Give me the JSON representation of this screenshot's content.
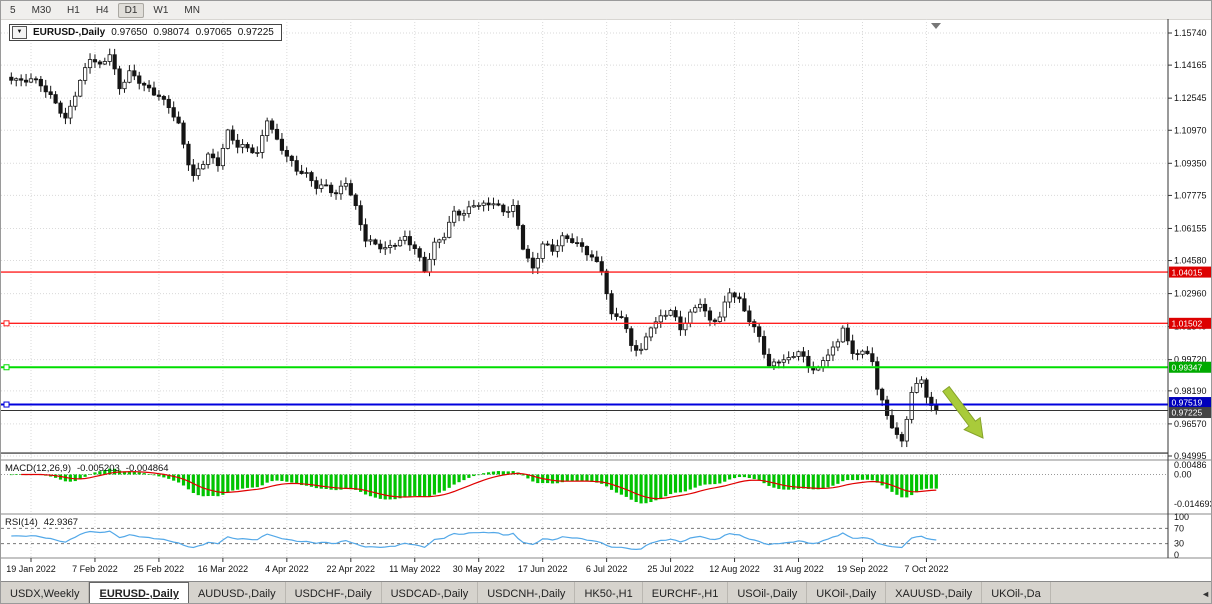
{
  "icons": {
    "symbol_dropdown": "▼",
    "tab_scroll_left": "◄",
    "shift_marker": "triangle-down"
  },
  "toolbar": {
    "active": "D1",
    "buttons": [
      {
        "label": "5"
      },
      {
        "label": "M30"
      },
      {
        "label": "H1"
      },
      {
        "label": "H4"
      },
      {
        "label": "D1"
      },
      {
        "label": "W1"
      },
      {
        "label": "MN"
      }
    ]
  },
  "chart_header": {
    "symbol": "EURUSD-,Daily",
    "open": "0.97650",
    "high": "0.98074",
    "low": "0.97065",
    "close": "0.97225"
  },
  "indicators": {
    "macd": {
      "title": "MACD(12,26,9)",
      "value_main": "-0.005203",
      "value_signal": "-0.004864",
      "axis_labels": [
        "0.00486",
        "0.00",
        "-0.014693"
      ],
      "histogram_color": "#00C400",
      "signal_color": "#E00000"
    },
    "rsi": {
      "title": "RSI(14)",
      "value": "42.9367",
      "axis_labels": [
        "100",
        "70",
        "30",
        "0"
      ],
      "levels": [
        70,
        30
      ],
      "line_color": "#53A8E8"
    }
  },
  "chart_data": {
    "type": "candlestick",
    "symbol": "EURUSD-",
    "timeframe": "Daily",
    "title": "EURUSD-,Daily",
    "visible_range": {
      "price_top": 1.1574,
      "price_bottom": 0.94995
    },
    "y_ticks": [
      "1.15740",
      "1.14165",
      "1.12545",
      "1.10970",
      "1.09350",
      "1.07775",
      "1.06155",
      "1.04580",
      "1.02960",
      "1.01340",
      "0.99720",
      "0.98190",
      "0.96570",
      "0.94995"
    ],
    "x_ticks": [
      {
        "i": 0,
        "label": "19 Jan 2022"
      },
      {
        "i": 13,
        "label": "7 Feb 2022"
      },
      {
        "i": 26,
        "label": "25 Feb 2022"
      },
      {
        "i": 39,
        "label": "16 Mar 2022"
      },
      {
        "i": 52,
        "label": "4 Apr 2022"
      },
      {
        "i": 65,
        "label": "22 Apr 2022"
      },
      {
        "i": 78,
        "label": "11 May 2022"
      },
      {
        "i": 91,
        "label": "30 May 2022"
      },
      {
        "i": 104,
        "label": "17 Jun 2022"
      },
      {
        "i": 117,
        "label": "6 Jul 2022"
      },
      {
        "i": 130,
        "label": "25 Jul 2022"
      },
      {
        "i": 143,
        "label": "12 Aug 2022"
      },
      {
        "i": 156,
        "label": "31 Aug 2022"
      },
      {
        "i": 169,
        "label": "19 Sep 2022"
      },
      {
        "i": 182,
        "label": "7 Oct 2022"
      }
    ],
    "price_path": [
      [
        -4,
        1.1355
      ],
      [
        -2,
        1.133
      ],
      [
        0,
        1.1343
      ],
      [
        2,
        1.1322
      ],
      [
        5,
        1.124
      ],
      [
        7,
        1.115
      ],
      [
        9,
        1.127
      ],
      [
        12,
        1.145
      ],
      [
        14,
        1.1415
      ],
      [
        16,
        1.148
      ],
      [
        18,
        1.1305
      ],
      [
        20,
        1.1375
      ],
      [
        23,
        1.131
      ],
      [
        26,
        1.127
      ],
      [
        28,
        1.122
      ],
      [
        30,
        1.112
      ],
      [
        32,
        1.093
      ],
      [
        33,
        1.086
      ],
      [
        34,
        1.09
      ],
      [
        36,
        1.098
      ],
      [
        38,
        1.094
      ],
      [
        40,
        1.109
      ],
      [
        42,
        1.1015
      ],
      [
        44,
        1.1005
      ],
      [
        46,
        1.098
      ],
      [
        48,
        1.116
      ],
      [
        50,
        1.105
      ],
      [
        52,
        1.097
      ],
      [
        54,
        1.0895
      ],
      [
        56,
        1.0875
      ],
      [
        58,
        1.0825
      ],
      [
        60,
        1.083
      ],
      [
        62,
        1.0785
      ],
      [
        64,
        1.084
      ],
      [
        66,
        1.071
      ],
      [
        68,
        1.056
      ],
      [
        70,
        1.0545
      ],
      [
        72,
        1.052
      ],
      [
        74,
        1.054
      ],
      [
        76,
        1.056
      ],
      [
        78,
        1.0515
      ],
      [
        80,
        1.041
      ],
      [
        82,
        1.0545
      ],
      [
        84,
        1.0585
      ],
      [
        86,
        1.069
      ],
      [
        88,
        1.068
      ],
      [
        90,
        1.0735
      ],
      [
        92,
        1.0735
      ],
      [
        94,
        1.075
      ],
      [
        96,
        1.0695
      ],
      [
        98,
        1.0715
      ],
      [
        100,
        1.052
      ],
      [
        102,
        1.0415
      ],
      [
        104,
        1.055
      ],
      [
        106,
        1.051
      ],
      [
        108,
        1.0565
      ],
      [
        110,
        1.055
      ],
      [
        112,
        1.052
      ],
      [
        114,
        1.048
      ],
      [
        116,
        1.042
      ],
      [
        118,
        1.0185
      ],
      [
        120,
        1.018
      ],
      [
        122,
        1.0035
      ],
      [
        124,
        1.002
      ],
      [
        126,
        1.0145
      ],
      [
        128,
        1.018
      ],
      [
        130,
        1.0213
      ],
      [
        132,
        1.0115
      ],
      [
        134,
        1.0195
      ],
      [
        136,
        1.026
      ],
      [
        138,
        1.0165
      ],
      [
        140,
        1.018
      ],
      [
        142,
        1.03
      ],
      [
        144,
        1.0255
      ],
      [
        146,
        1.017
      ],
      [
        148,
        1.009
      ],
      [
        150,
        0.994
      ],
      [
        152,
        0.9965
      ],
      [
        154,
        0.9965
      ],
      [
        156,
        1.0015
      ],
      [
        158,
        0.9945
      ],
      [
        160,
        0.993
      ],
      [
        162,
        1.0005
      ],
      [
        164,
        1.0045
      ],
      [
        165,
        1.013
      ],
      [
        167,
        0.999
      ],
      [
        169,
        1.0025
      ],
      [
        171,
        0.997
      ],
      [
        172,
        0.984
      ],
      [
        174,
        0.969
      ],
      [
        176,
        0.9594
      ],
      [
        177,
        0.956
      ],
      [
        179,
        0.9815
      ],
      [
        181,
        0.9886
      ],
      [
        182,
        0.98
      ],
      [
        183,
        0.974
      ],
      [
        184,
        0.97225
      ]
    ],
    "hlines": [
      {
        "price": 1.04015,
        "label": "1.04015",
        "color": "#FF2020",
        "badge": "#DD0000",
        "width": 1.4
      },
      {
        "price": 1.01502,
        "label": "1.01502",
        "color": "#FF2020",
        "badge": "#DD0000",
        "width": 1.4,
        "marker": true
      },
      {
        "price": 0.99347,
        "label": "0.99347",
        "color": "#00DD00",
        "badge": "#00AA00",
        "width": 2,
        "marker": true
      },
      {
        "price": 0.97519,
        "label": "0.97519",
        "color": "#0000DD",
        "badge": "#0000BB",
        "width": 2,
        "marker": true,
        "badge_dy": -2
      },
      {
        "price": 0.97225,
        "label": "0.97225",
        "color": "#333333",
        "badge": "#444444",
        "width": 1,
        "badge_dy": 2
      },
      {
        "price": 0.9514,
        "label": "",
        "color": "#222222",
        "badge": "",
        "width": 1.2
      }
    ],
    "arrow": {
      "shape": "down-right-arrow",
      "color": "#A9CB3A"
    },
    "macd_params": [
      12,
      26,
      9
    ],
    "rsi_period": 14
  },
  "tabs": {
    "active_index": 1,
    "items": [
      {
        "label": "USDX,Weekly"
      },
      {
        "label": "EURUSD-,Daily"
      },
      {
        "label": "AUDUSD-,Daily"
      },
      {
        "label": "USDCHF-,Daily"
      },
      {
        "label": "USDCAD-,Daily"
      },
      {
        "label": "USDCNH-,Daily"
      },
      {
        "label": "HK50-,H1"
      },
      {
        "label": "EURCHF-,H1"
      },
      {
        "label": "USOil-,Daily"
      },
      {
        "label": "UKOil-,Daily"
      },
      {
        "label": "XAUUSD-,Daily"
      },
      {
        "label": "UKOil-,Da"
      }
    ]
  }
}
